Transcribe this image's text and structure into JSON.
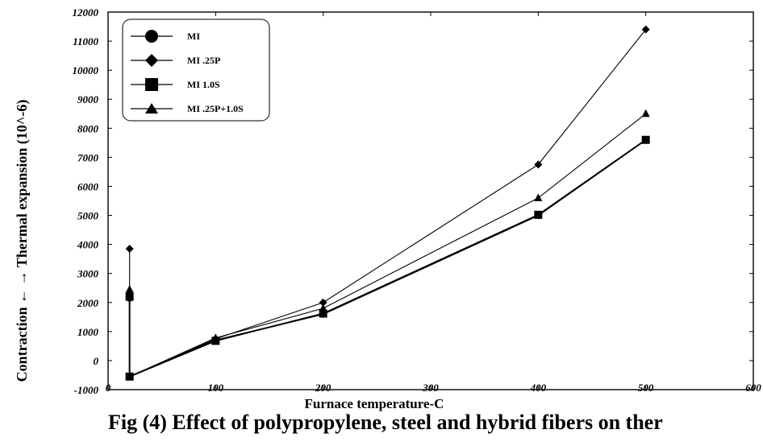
{
  "caption": "Fig (4) Effect of polypropylene, steel and hybrid fibers on ther",
  "chart_data": {
    "type": "line",
    "title": "",
    "xlabel": "Furnace temperature-C",
    "ylabel": "Contraction ←    → Thermal expansion (10^-6)",
    "xlim": [
      0,
      600
    ],
    "ylim": [
      -1000,
      12000
    ],
    "x_ticks": [
      "0",
      "100",
      "200",
      "300",
      "400",
      "500",
      "600"
    ],
    "y_ticks": [
      "-1000",
      "0",
      "1000",
      "2000",
      "3000",
      "4000",
      "5000",
      "6000",
      "7000",
      "8000",
      "9000",
      "10000",
      "11000",
      "12000"
    ],
    "grid": false,
    "legend_position": "top-left",
    "series": [
      {
        "name": "MI",
        "marker": "circle",
        "x": [
          20,
          20,
          100,
          200,
          400,
          500
        ],
        "y": [
          2150,
          -550,
          700,
          1600,
          5000,
          7600
        ]
      },
      {
        "name": "MI .25P",
        "marker": "diamond",
        "x": [
          20,
          20,
          100,
          200,
          400,
          500
        ],
        "y": [
          3850,
          -550,
          750,
          2000,
          6750,
          11400
        ]
      },
      {
        "name": "MI 1.0S",
        "marker": "square",
        "x": [
          20,
          20,
          100,
          200,
          400,
          500
        ],
        "y": [
          2200,
          -550,
          680,
          1620,
          5020,
          7600
        ]
      },
      {
        "name": "MI .25P+1.0S",
        "marker": "triangle",
        "x": [
          20,
          20,
          100,
          200,
          400,
          500
        ],
        "y": [
          2450,
          -550,
          780,
          1800,
          5600,
          8500
        ]
      }
    ]
  }
}
